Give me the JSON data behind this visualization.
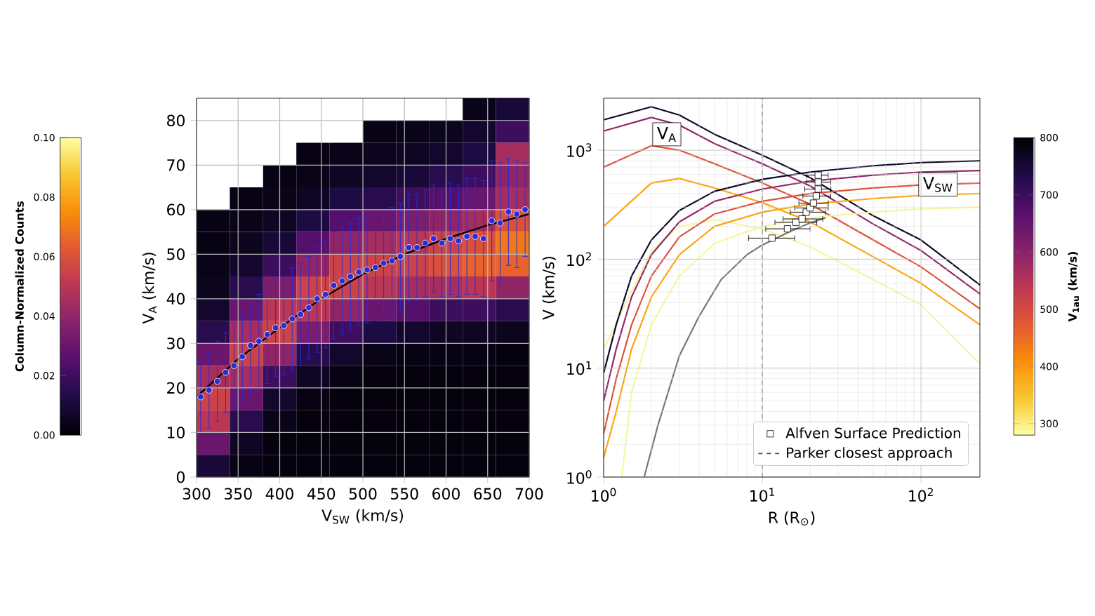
{
  "chart_data": [
    {
      "type": "heatmap",
      "xlabel": "V$_{SW}$ (km/s)",
      "ylabel": "V$_{A}$ (km/s)",
      "clabel": "Column-Normalized Counts",
      "x": [
        320,
        360,
        400,
        440,
        480,
        520,
        560,
        600,
        640,
        680
      ],
      "y": [
        82.5,
        77.5,
        72.5,
        67.5,
        62.5,
        57.5,
        52.5,
        47.5,
        42.5,
        37.5,
        32.5,
        27.5,
        22.5,
        17.5,
        12.5,
        7.5,
        2.5
      ],
      "cells": [
        [
          null,
          null,
          null,
          null,
          null,
          null,
          null,
          null,
          0.004,
          0.01
        ],
        [
          null,
          null,
          null,
          null,
          null,
          0.003,
          0.004,
          0.005,
          0.008,
          0.02
        ],
        [
          null,
          null,
          null,
          0.003,
          0.004,
          0.005,
          0.006,
          0.008,
          0.012,
          0.045
        ],
        [
          null,
          null,
          0.003,
          0.004,
          0.006,
          0.008,
          0.01,
          0.015,
          0.02,
          0.04
        ],
        [
          null,
          0.003,
          0.004,
          0.006,
          0.012,
          0.015,
          0.02,
          0.025,
          0.03,
          0.045
        ],
        [
          0.003,
          0.004,
          0.006,
          0.012,
          0.025,
          0.03,
          0.035,
          0.04,
          0.045,
          0.06
        ],
        [
          0.003,
          0.005,
          0.01,
          0.025,
          0.04,
          0.045,
          0.05,
          0.055,
          0.06,
          0.07
        ],
        [
          0.004,
          0.008,
          0.02,
          0.04,
          0.055,
          0.055,
          0.055,
          0.06,
          0.065,
          0.065
        ],
        [
          0.005,
          0.015,
          0.035,
          0.055,
          0.055,
          0.05,
          0.045,
          0.045,
          0.05,
          0.04
        ],
        [
          0.008,
          0.03,
          0.05,
          0.05,
          0.04,
          0.03,
          0.025,
          0.02,
          0.02,
          0.015
        ],
        [
          0.015,
          0.045,
          0.055,
          0.035,
          0.02,
          0.012,
          0.008,
          0.006,
          0.006,
          0.005
        ],
        [
          0.03,
          0.055,
          0.04,
          0.015,
          0.008,
          0.004,
          0.003,
          0.003,
          0.003,
          0.002
        ],
        [
          0.045,
          0.045,
          0.02,
          0.006,
          0.003,
          0.002,
          0.002,
          0.002,
          0.002,
          0.002
        ],
        [
          0.055,
          0.03,
          0.008,
          0.003,
          0.002,
          0.002,
          0.002,
          0.002,
          0.002,
          0.002
        ],
        [
          0.05,
          0.015,
          0.004,
          0.002,
          0.002,
          0.002,
          0.002,
          0.002,
          0.002,
          0.002
        ],
        [
          0.03,
          0.006,
          0.002,
          0.002,
          0.002,
          0.002,
          0.002,
          0.002,
          0.002,
          0.002
        ],
        [
          0.01,
          0.003,
          0.002,
          0.002,
          0.002,
          0.002,
          0.002,
          0.002,
          0.002,
          0.002
        ]
      ],
      "clim": [
        0,
        0.1
      ],
      "cticks": [
        {
          "value": 0,
          "label": "0.00"
        },
        {
          "value": 0.02,
          "label": "0.02"
        },
        {
          "value": 0.04,
          "label": "0.04"
        },
        {
          "value": 0.06,
          "label": "0.06"
        },
        {
          "value": 0.08,
          "label": "0.08"
        },
        {
          "value": 0.1,
          "label": "0.10"
        }
      ],
      "xlim": [
        300,
        700
      ],
      "ylim": [
        0,
        85
      ],
      "xticks": [
        300,
        350,
        400,
        450,
        500,
        550,
        600,
        650,
        700
      ],
      "yticks": [
        0,
        10,
        20,
        30,
        40,
        50,
        60,
        70,
        80
      ],
      "grid": true,
      "series": [
        {
          "type": "scatter",
          "marker": "circle",
          "color": "#2b2bd9",
          "x": [
            305,
            315,
            325,
            335,
            345,
            355,
            365,
            375,
            385,
            395,
            405,
            415,
            425,
            435,
            445,
            455,
            465,
            475,
            485,
            495,
            505,
            515,
            525,
            535,
            545,
            555,
            565,
            575,
            585,
            595,
            605,
            615,
            625,
            635,
            645,
            655,
            665,
            675,
            685,
            695
          ],
          "values": [
            18,
            19.5,
            21.5,
            23.5,
            25,
            27,
            29.5,
            30.5,
            32,
            33.5,
            34,
            35.5,
            36.5,
            38,
            40,
            41,
            43,
            44,
            45,
            46,
            46.5,
            47,
            48,
            48.5,
            49.5,
            51.5,
            51.5,
            52.5,
            53.5,
            52.5,
            53.5,
            53,
            54,
            54,
            53.5,
            57.5,
            57,
            59.5,
            59,
            60
          ],
          "errors": [
            8,
            8.5,
            9,
            9,
            9.5,
            10,
            10.5,
            10.5,
            11,
            11,
            11,
            11.5,
            11.5,
            11.5,
            12,
            12,
            12,
            12,
            12,
            12,
            12,
            12,
            12,
            12,
            12,
            12,
            12,
            12,
            12,
            12,
            12.5,
            12.5,
            13,
            13,
            13,
            13.5,
            13.5,
            12,
            12,
            10.5
          ]
        },
        {
          "type": "line",
          "color": "#000000",
          "x": [
            300,
            350,
            400,
            450,
            500,
            550,
            600,
            650,
            700
          ],
          "values": [
            18,
            26.5,
            33.5,
            40,
            45.5,
            50,
            53.5,
            56.5,
            59
          ]
        }
      ]
    },
    {
      "type": "line",
      "log": "xy",
      "xlabel": "R (R$_{⊙}$)",
      "ylabel": "V (km/s)",
      "clabel": "V$_{1au}$ (km/s)",
      "clim": [
        280,
        800
      ],
      "cticks": [
        300,
        400,
        500,
        600,
        700,
        800
      ],
      "xlim": [
        1,
        235
      ],
      "ylim": [
        1,
        3000
      ],
      "xticks": [
        {
          "value": 1,
          "label": "10$^{0}$"
        },
        {
          "value": 10,
          "label": "10$^{1}$"
        },
        {
          "value": 100,
          "label": "10$^{2}$"
        }
      ],
      "yticks": [
        {
          "value": 1,
          "label": "10$^{0}$"
        },
        {
          "value": 10,
          "label": "10$^{1}$"
        },
        {
          "value": 100,
          "label": "10$^{2}$"
        },
        {
          "value": 1000,
          "label": "10$^{3}$"
        }
      ],
      "grid": true,
      "legend": "bottom right",
      "series": [
        {
          "color": "#f6f7a0",
          "x": [
            1,
            2,
            3,
            5,
            10,
            20,
            50,
            100,
            235
          ],
          "values": [
            15,
            120,
            200,
            230,
            190,
            130,
            65,
            38,
            11
          ]
        },
        {
          "color": "#fca50a",
          "x": [
            1,
            2,
            3,
            5,
            10,
            20,
            50,
            100,
            235
          ],
          "values": [
            200,
            500,
            550,
            450,
            330,
            220,
            105,
            60,
            25
          ]
        },
        {
          "color": "#dd513a",
          "x": [
            1,
            2,
            3,
            5,
            10,
            20,
            50,
            100,
            235
          ],
          "values": [
            700,
            1100,
            1000,
            750,
            500,
            320,
            150,
            85,
            35
          ]
        },
        {
          "color": "#932667",
          "x": [
            1,
            2,
            3,
            5,
            10,
            20,
            50,
            100,
            235
          ],
          "values": [
            1500,
            2000,
            1700,
            1150,
            750,
            470,
            210,
            120,
            48
          ]
        },
        {
          "color": "#0d0829",
          "x": [
            1,
            2,
            3,
            5,
            10,
            20,
            50,
            100,
            235
          ],
          "values": [
            1900,
            2500,
            2100,
            1400,
            900,
            560,
            250,
            150,
            58
          ]
        },
        {
          "color": "#f6f7a0",
          "x": [
            1.3,
            1.5,
            2,
            3,
            5,
            10,
            20,
            50,
            100,
            235
          ],
          "values": [
            1,
            6,
            25,
            70,
            140,
            200,
            240,
            270,
            290,
            300
          ]
        },
        {
          "color": "#fca50a",
          "x": [
            1,
            1.2,
            1.5,
            2,
            3,
            5,
            10,
            20,
            50,
            100,
            235
          ],
          "values": [
            1.5,
            4,
            15,
            45,
            110,
            200,
            270,
            320,
            360,
            385,
            400
          ]
        },
        {
          "color": "#dd513a",
          "x": [
            1,
            1.2,
            1.5,
            2,
            3,
            5,
            10,
            20,
            50,
            100,
            235
          ],
          "values": [
            2.5,
            8,
            25,
            70,
            160,
            260,
            340,
            400,
            450,
            480,
            500
          ]
        },
        {
          "color": "#932667",
          "x": [
            1,
            1.2,
            1.5,
            2,
            3,
            5,
            10,
            20,
            50,
            100,
            235
          ],
          "values": [
            5,
            15,
            45,
            110,
            220,
            340,
            440,
            520,
            590,
            630,
            650
          ]
        },
        {
          "color": "#0d0829",
          "x": [
            1,
            1.2,
            1.5,
            2,
            3,
            5,
            10,
            20,
            50,
            100,
            235
          ],
          "values": [
            9,
            25,
            70,
            150,
            280,
            420,
            540,
            630,
            720,
            770,
            800
          ]
        },
        {
          "color": "#777777",
          "x": [
            1.8,
            2.2,
            3,
            4,
            5.5,
            8,
            10,
            15,
            20,
            25
          ],
          "values": [
            1,
            3,
            13,
            30,
            65,
            110,
            135,
            180,
            215,
            240
          ]
        },
        {
          "type": "scatter",
          "marker": "square",
          "name": "Alfven Surface Prediction",
          "color": "#000000",
          "x": [
            11.5,
            14.4,
            16.3,
            17.8,
            18.9,
            20,
            21,
            21.9,
            22.5,
            22.5,
            22.5
          ],
          "values": [
            156,
            190,
            218,
            234,
            270,
            296,
            327,
            380,
            440,
            510,
            590
          ],
          "xerrors": [
            [
              8.2,
              16
            ],
            [
              10.5,
              20
            ],
            [
              12,
              22
            ],
            [
              13.5,
              24
            ],
            [
              15,
              25
            ],
            [
              16,
              26
            ],
            [
              17,
              26
            ],
            [
              18,
              27
            ],
            [
              18.5,
              27
            ],
            [
              19,
              27
            ],
            [
              19,
              26
            ]
          ]
        }
      ],
      "ref_lines": [
        {
          "axis": "x",
          "value": 10,
          "label": "Parker closest approach",
          "color": "#555555",
          "line_style": "dashed"
        }
      ],
      "annotations": [
        {
          "text": "V$_{A}$",
          "x": 2.5,
          "y": 1400
        },
        {
          "text": "V$_{SW}$",
          "x": 128,
          "y": 485
        }
      ]
    }
  ]
}
